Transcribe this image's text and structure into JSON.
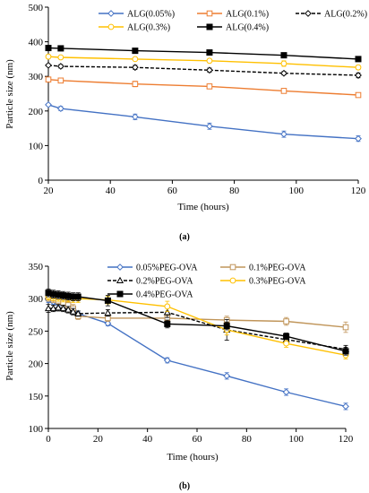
{
  "chart_data": [
    {
      "type": "line",
      "panel_label": "(a)",
      "xlabel": "Time (hours)",
      "ylabel": "Particle size (nm)",
      "xlim": [
        20,
        120
      ],
      "ylim": [
        0,
        500
      ],
      "xticks": [
        20,
        40,
        60,
        80,
        100,
        120
      ],
      "yticks": [
        0,
        100,
        200,
        300,
        400,
        500
      ],
      "grid": false,
      "legend": "top-right, three columns",
      "x": [
        20,
        24,
        48,
        72,
        96,
        120
      ],
      "series": [
        {
          "name": "ALG(0.05%)",
          "color": "#4472C4",
          "marker": "diamond-open",
          "dash": false,
          "values": [
            218,
            207,
            183,
            156,
            133,
            120
          ],
          "errors": [
            3,
            6,
            8,
            9,
            9,
            8
          ]
        },
        {
          "name": "ALG(0.1%)",
          "color": "#ED7D31",
          "marker": "square-open",
          "dash": false,
          "values": [
            291,
            288,
            278,
            271,
            258,
            246
          ],
          "errors": [
            3,
            6,
            8,
            6,
            7,
            6
          ]
        },
        {
          "name": "ALG(0.2%)",
          "color": "#000000",
          "marker": "diamond-open",
          "dash": true,
          "values": [
            332,
            329,
            326,
            318,
            309,
            303
          ],
          "errors": [
            3,
            5,
            6,
            6,
            5,
            7
          ]
        },
        {
          "name": "ALG(0.3%)",
          "color": "#FFC000",
          "marker": "circle-open",
          "dash": false,
          "values": [
            357,
            355,
            350,
            345,
            337,
            326
          ],
          "errors": [
            3,
            4,
            4,
            5,
            8,
            6
          ]
        },
        {
          "name": "ALG(0.4%)",
          "color": "#000000",
          "marker": "square-filled",
          "dash": false,
          "values": [
            382,
            381,
            374,
            369,
            361,
            350
          ],
          "errors": [
            2,
            2,
            2,
            3,
            3,
            4
          ]
        }
      ]
    },
    {
      "type": "line",
      "panel_label": "(b)",
      "xlabel": "Time (hours)",
      "ylabel": "Particle size (nm)",
      "xlim": [
        0,
        120
      ],
      "ylim": [
        100,
        350
      ],
      "xticks": [
        0,
        20,
        40,
        60,
        80,
        100,
        120
      ],
      "yticks": [
        100,
        150,
        200,
        250,
        300,
        350
      ],
      "grid": false,
      "legend": "top-right, two columns",
      "x": [
        0,
        2,
        4,
        6,
        8,
        10,
        12,
        24,
        48,
        72,
        96,
        120
      ],
      "series": [
        {
          "name": "0.05%PEG-OVA",
          "color": "#4472C4",
          "marker": "diamond-open",
          "dash": false,
          "values": [
            298,
            295,
            292,
            290,
            287,
            283,
            277,
            262,
            205,
            181,
            156,
            134
          ],
          "errors": [
            4,
            4,
            4,
            4,
            4,
            4,
            4,
            4,
            4,
            5,
            5,
            5
          ]
        },
        {
          "name": "0.1%PEG-OVA",
          "color": "#C0955A",
          "marker": "square-open",
          "dash": false,
          "values": [
            302,
            300,
            297,
            294,
            290,
            285,
            273,
            270,
            270,
            267,
            265,
            256
          ],
          "errors": [
            6,
            6,
            6,
            6,
            6,
            6,
            5,
            5,
            5,
            6,
            6,
            8
          ]
        },
        {
          "name": "0.2%PEG-OVA",
          "color": "#000000",
          "marker": "triangle-open",
          "dash": true,
          "values": [
            285,
            285,
            286,
            285,
            283,
            280,
            277,
            278,
            279,
            252,
            237,
            222
          ],
          "errors": [
            6,
            5,
            5,
            5,
            5,
            5,
            4,
            5,
            8,
            16,
            6,
            6
          ]
        },
        {
          "name": "0.3%PEG-OVA",
          "color": "#FFC000",
          "marker": "circle-open",
          "dash": false,
          "values": [
            304,
            303,
            302,
            301,
            301,
            300,
            300,
            298,
            288,
            252,
            231,
            213
          ],
          "errors": [
            6,
            6,
            6,
            6,
            6,
            6,
            6,
            6,
            8,
            8,
            6,
            6
          ]
        },
        {
          "name": "0.4%PEG-OVA",
          "color": "#000000",
          "marker": "square-filled",
          "dash": false,
          "values": [
            309,
            307,
            306,
            305,
            304,
            303,
            303,
            297,
            261,
            258,
            242,
            219
          ],
          "errors": [
            6,
            6,
            6,
            6,
            6,
            6,
            6,
            8,
            6,
            6,
            5,
            6
          ]
        }
      ]
    }
  ]
}
